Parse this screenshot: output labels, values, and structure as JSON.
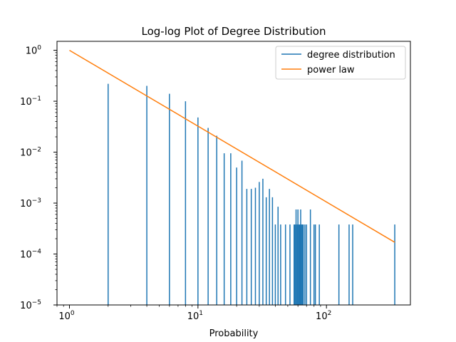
{
  "chart_data": {
    "type": "line",
    "title": "Log-log Plot of Degree Distribution",
    "xlabel": "Probability",
    "ylabel": "",
    "xscale": "log",
    "yscale": "log",
    "xlim": [
      0.8,
      450
    ],
    "ylim": [
      1e-05,
      1.5
    ],
    "grid": false,
    "legend_position": "top-right",
    "series": [
      {
        "name": "degree distribution",
        "color": "#1f77b4",
        "style": "stems",
        "x": [
          2,
          4,
          6,
          8,
          10,
          12,
          14,
          16,
          18,
          20,
          22,
          24,
          26,
          28,
          30,
          32,
          34,
          36,
          38,
          40,
          42,
          44,
          48,
          52,
          56,
          57,
          58,
          59,
          60,
          61,
          62,
          63,
          64,
          65,
          66,
          68,
          70,
          75,
          80,
          82,
          88,
          125,
          150,
          160,
          340
        ],
        "y": [
          0.22,
          0.2,
          0.14,
          0.1,
          0.048,
          0.03,
          0.021,
          0.0095,
          0.0095,
          0.005,
          0.0068,
          0.0019,
          0.0019,
          0.002,
          0.0026,
          0.003,
          0.0013,
          0.0019,
          0.0013,
          0.00038,
          0.00085,
          0.00038,
          0.00038,
          0.00038,
          0.00038,
          0.00038,
          0.00075,
          0.00038,
          0.00075,
          0.00038,
          0.00038,
          0.00075,
          0.00038,
          0.00038,
          0.00038,
          0.00038,
          0.00038,
          0.00075,
          0.00038,
          0.00038,
          0.00038,
          0.00038,
          0.00038,
          0.00038,
          0.00038
        ]
      },
      {
        "name": "power law",
        "color": "#ff7f0e",
        "style": "line",
        "x": [
          1,
          340
        ],
        "y": [
          1,
          0.00017
        ]
      }
    ],
    "xticks": [
      {
        "value": 1,
        "label": "10",
        "exp": "0"
      },
      {
        "value": 10,
        "label": "10",
        "exp": "1"
      },
      {
        "value": 100,
        "label": "10",
        "exp": "2"
      }
    ],
    "yticks": [
      {
        "value": 1e-05,
        "label": "10",
        "exp": "−5"
      },
      {
        "value": 0.0001,
        "label": "10",
        "exp": "−4"
      },
      {
        "value": 0.001,
        "label": "10",
        "exp": "−3"
      },
      {
        "value": 0.01,
        "label": "10",
        "exp": "−2"
      },
      {
        "value": 0.1,
        "label": "10",
        "exp": "−1"
      },
      {
        "value": 1,
        "label": "10",
        "exp": "0"
      }
    ]
  }
}
